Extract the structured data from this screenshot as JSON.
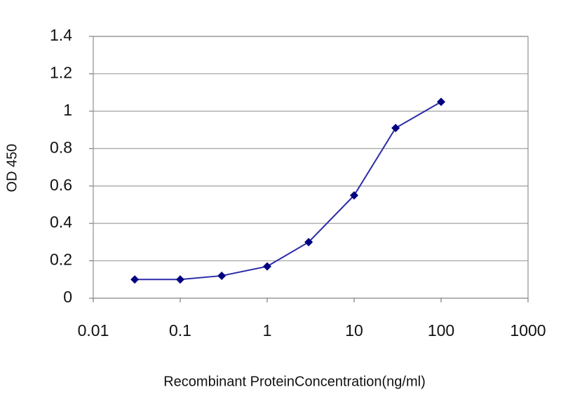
{
  "chart_data": {
    "type": "line",
    "x_label": "Recombinant ProteinConcentration(ng/ml)",
    "y_label": "OD 450",
    "x": [
      0.03,
      0.1,
      0.3,
      1,
      3,
      10,
      30,
      100
    ],
    "series": [
      {
        "color": "#2b2ba8",
        "marker_color": "#000080",
        "values": [
          0.1,
          0.1,
          0.12,
          0.17,
          0.3,
          0.55,
          0.91,
          1.05
        ]
      }
    ],
    "xscale": "log",
    "xlim": [
      0.01,
      1000
    ],
    "xticks": [
      0.01,
      0.1,
      1,
      10,
      100,
      1000
    ],
    "ylim": [
      0,
      1.4
    ],
    "yticks": [
      0,
      0.2,
      0.4,
      0.6,
      0.8,
      1,
      1.2,
      1.4
    ],
    "grid": true
  }
}
